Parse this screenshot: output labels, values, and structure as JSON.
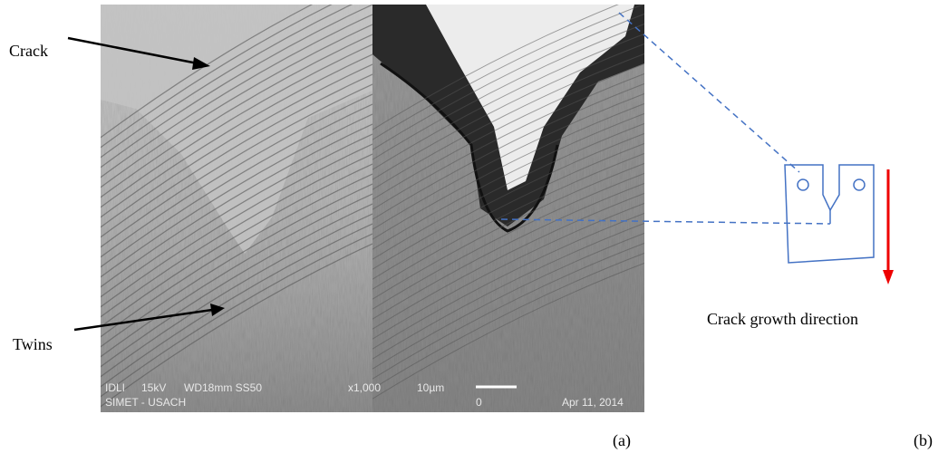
{
  "figure": {
    "labels": {
      "crack": "Crack",
      "twins": "Twins"
    },
    "sem_overlay": {
      "detector": "IDLI",
      "voltage": "15kV",
      "working_distance": "WD18mm SS50",
      "magnification": "x1,000",
      "scale": "10µm",
      "zero": "0",
      "lab": "SIMET - USACH",
      "date": "Apr 11, 2014"
    },
    "schematic_label": "Crack growth direction",
    "panel_labels": [
      "(a)",
      "(b)"
    ]
  }
}
